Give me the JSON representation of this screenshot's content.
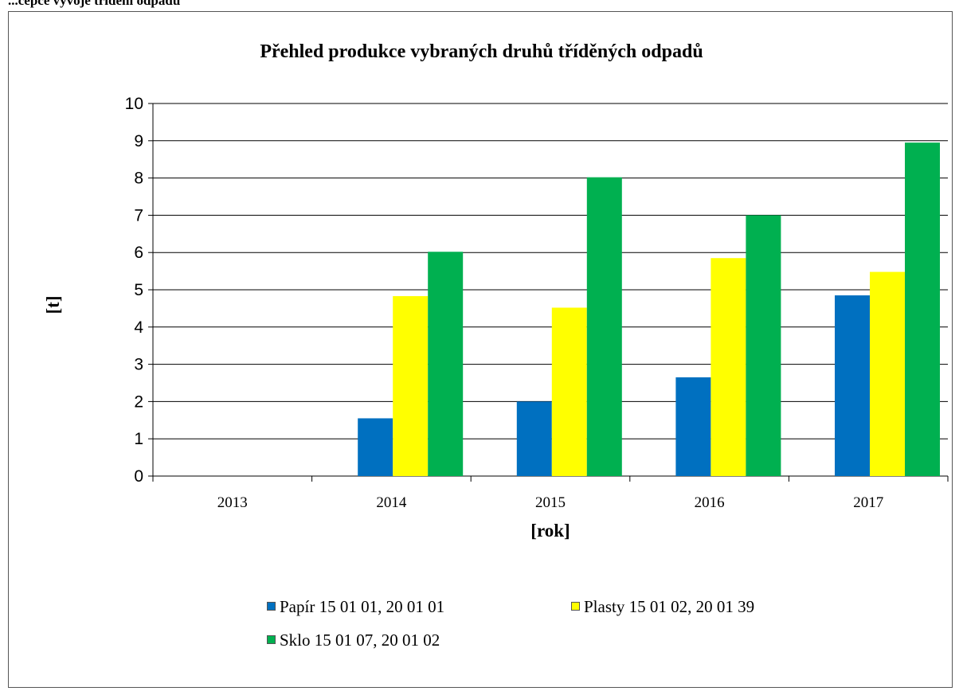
{
  "header_fragment": "...cepce vývoje třídění odpadů",
  "chart_data": {
    "type": "bar",
    "title": "Přehled produkce vybraných druhů tříděných odpadů",
    "xlabel": "[rok]",
    "ylabel": "[t]",
    "categories": [
      "2013",
      "2014",
      "2015",
      "2016",
      "2017"
    ],
    "ylim": [
      0,
      10
    ],
    "yticks": [
      "0",
      "1",
      "2",
      "3",
      "4",
      "5",
      "6",
      "7",
      "8",
      "9",
      "10"
    ],
    "grid": true,
    "legend_position": "bottom",
    "series": [
      {
        "name": "Papír 15 01 01, 20 01 01",
        "color": "#0070c0",
        "values": [
          0,
          1.55,
          2.0,
          2.65,
          4.85
        ]
      },
      {
        "name": "Plasty 15 01 02, 20 01 39",
        "color": "#ffff00",
        "values": [
          0,
          4.83,
          4.52,
          5.85,
          5.48
        ]
      },
      {
        "name": "Sklo 15 01 07, 20 01 02",
        "color": "#00b050",
        "values": [
          0,
          6.02,
          8.02,
          7.0,
          8.95
        ]
      }
    ]
  }
}
